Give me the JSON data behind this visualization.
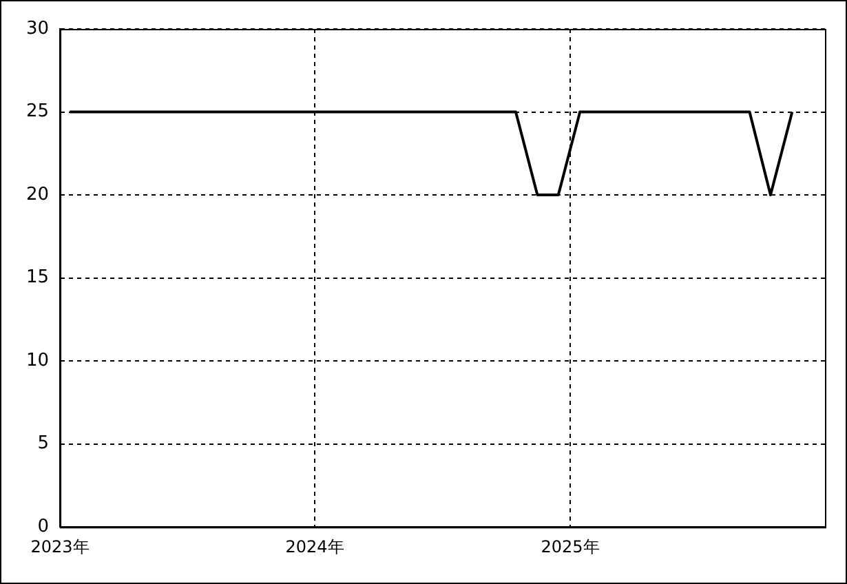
{
  "chart_data": {
    "type": "line",
    "x": [
      "2023-01-15",
      "2024-10-15",
      "2024-11-15",
      "2024-12-15",
      "2025-01-15",
      "2025-09-15",
      "2025-10-15",
      "2025-11-15"
    ],
    "series": [
      {
        "color": "#000000",
        "values": [
          25,
          25,
          20,
          20,
          25,
          25,
          20,
          25
        ]
      }
    ],
    "xlim": [
      "2023-01-01",
      "2026-01-01"
    ],
    "xticks": [
      {
        "value": "2023-01-01",
        "label": "2023年"
      },
      {
        "value": "2024-01-01",
        "label": "2024年"
      },
      {
        "value": "2025-01-01",
        "label": "2025年"
      }
    ],
    "ylim": [
      0,
      30
    ],
    "yticks": [
      0,
      5,
      10,
      15,
      20,
      25,
      30
    ],
    "grid": true,
    "legend": false,
    "marker": "none",
    "line_style": "solid"
  }
}
